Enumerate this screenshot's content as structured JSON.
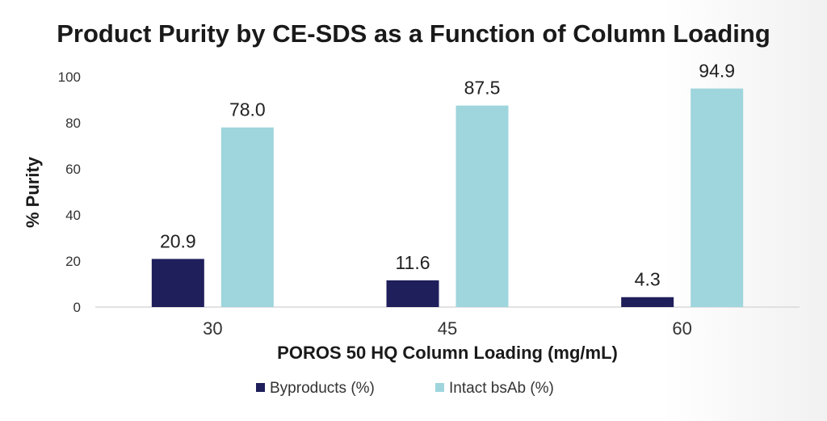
{
  "chart_data": {
    "type": "bar",
    "title": "Product Purity by CE-SDS as a Function of Column Loading",
    "xlabel": "POROS 50 HQ Column Loading (mg/mL)",
    "ylabel": "% Purity",
    "categories": [
      "30",
      "45",
      "60"
    ],
    "series": [
      {
        "name": "Byproducts (%)",
        "values": [
          20.9,
          11.6,
          4.3
        ],
        "labels": [
          "20.9",
          "11.6",
          "4.3"
        ],
        "color": "#1f1f5c"
      },
      {
        "name": "Intact bsAb (%)",
        "values": [
          78.0,
          87.5,
          94.9
        ],
        "labels": [
          "78.0",
          "87.5",
          "94.9"
        ],
        "color": "#9fd5dc"
      }
    ],
    "ylim": [
      0,
      100
    ],
    "yticks": [
      "0",
      "20",
      "40",
      "60",
      "80",
      "100"
    ],
    "grid": false,
    "legend_position": "bottom"
  }
}
